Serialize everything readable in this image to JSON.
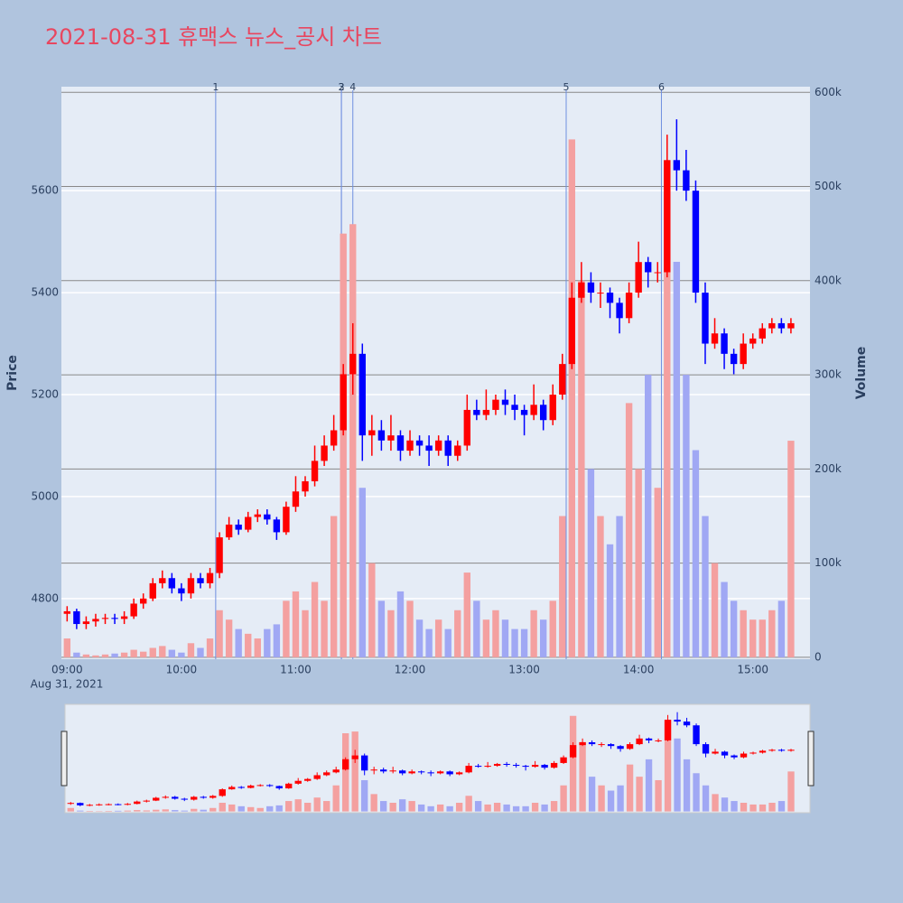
{
  "chart_data": {
    "type": "candlestick",
    "title": "2021-08-31 휴맥스 뉴스_공시 차트",
    "y_label": "Price",
    "y2_label": "Volume",
    "x_date_label": "Aug 31, 2021",
    "increasing_color": "#ff0000",
    "decreasing_color": "#0000ff",
    "volume_increasing_color": "#f4a0a0",
    "volume_decreasing_color": "#a0a8f4",
    "xlim": [
      "08:57",
      "15:30"
    ],
    "xticks": [
      "09:00",
      "10:00",
      "11:00",
      "12:00",
      "13:00",
      "14:00",
      "15:00"
    ],
    "ylim": [
      4681,
      5804
    ],
    "yticks": [
      4800,
      5000,
      5200,
      5400,
      5600
    ],
    "y2lim": [
      -2000,
      606000
    ],
    "y2ticks": [
      0,
      {
        "value": 100000,
        "label": "100k"
      },
      {
        "value": 200000,
        "label": "200k"
      },
      {
        "value": 300000,
        "label": "300k"
      },
      {
        "value": 400000,
        "label": "400k"
      },
      {
        "value": 500000,
        "label": "500k"
      },
      {
        "value": 600000,
        "label": "600k"
      }
    ],
    "news_markers": [
      {
        "x": "10:18",
        "label": "1"
      },
      {
        "x": "11:24",
        "label": "2"
      },
      {
        "x": "11:24",
        "label": "3"
      },
      {
        "x": "11:30",
        "label": "4"
      },
      {
        "x": "13:22",
        "label": "5"
      },
      {
        "x": "14:12",
        "label": "6"
      }
    ],
    "x": [
      "09:00",
      "09:05",
      "09:10",
      "09:15",
      "09:20",
      "09:25",
      "09:30",
      "09:35",
      "09:40",
      "09:45",
      "09:50",
      "09:55",
      "10:00",
      "10:05",
      "10:10",
      "10:15",
      "10:20",
      "10:25",
      "10:30",
      "10:35",
      "10:40",
      "10:45",
      "10:50",
      "10:55",
      "11:00",
      "11:05",
      "11:10",
      "11:15",
      "11:20",
      "11:25",
      "11:30",
      "11:35",
      "11:40",
      "11:45",
      "11:50",
      "11:55",
      "12:00",
      "12:05",
      "12:10",
      "12:15",
      "12:20",
      "12:25",
      "12:30",
      "12:35",
      "12:40",
      "12:45",
      "12:50",
      "12:55",
      "13:00",
      "13:05",
      "13:10",
      "13:15",
      "13:20",
      "13:25",
      "13:30",
      "13:35",
      "13:40",
      "13:45",
      "13:50",
      "13:55",
      "14:00",
      "14:05",
      "14:10",
      "14:15",
      "14:20",
      "14:25",
      "14:30",
      "14:35",
      "14:40",
      "14:45",
      "14:50",
      "14:55",
      "15:00",
      "15:05",
      "15:10",
      "15:15",
      "15:20"
    ],
    "open": [
      4770,
      4775,
      4750,
      4755,
      4760,
      4762,
      4760,
      4765,
      4790,
      4800,
      4830,
      4840,
      4820,
      4810,
      4840,
      4830,
      4850,
      4920,
      4945,
      4935,
      4960,
      4965,
      4955,
      4930,
      4980,
      5010,
      5030,
      5070,
      5100,
      5130,
      5240,
      5280,
      5120,
      5130,
      5110,
      5120,
      5090,
      5110,
      5100,
      5090,
      5110,
      5080,
      5100,
      5170,
      5160,
      5170,
      5190,
      5180,
      5170,
      5160,
      5180,
      5150,
      5200,
      5260,
      5390,
      5420,
      5400,
      5400,
      5380,
      5350,
      5400,
      5460,
      5440,
      5440,
      5660,
      5640,
      5600,
      5400,
      5300,
      5320,
      5280,
      5260,
      5300,
      5310,
      5330,
      5340,
      5330
    ],
    "high": [
      4785,
      4780,
      4765,
      4770,
      4770,
      4770,
      4775,
      4800,
      4810,
      4840,
      4855,
      4850,
      4830,
      4850,
      4850,
      4860,
      4930,
      4960,
      4955,
      4970,
      4975,
      4975,
      4960,
      4990,
      5040,
      5040,
      5100,
      5120,
      5160,
      5260,
      5340,
      5300,
      5160,
      5150,
      5160,
      5130,
      5130,
      5120,
      5120,
      5120,
      5120,
      5110,
      5200,
      5190,
      5210,
      5200,
      5210,
      5200,
      5180,
      5220,
      5190,
      5220,
      5280,
      5420,
      5460,
      5440,
      5420,
      5410,
      5390,
      5420,
      5500,
      5470,
      5460,
      5710,
      5740,
      5680,
      5620,
      5420,
      5350,
      5330,
      5290,
      5320,
      5320,
      5340,
      5350,
      5350,
      5350
    ],
    "low": [
      4755,
      4740,
      4740,
      4745,
      4750,
      4750,
      4750,
      4760,
      4780,
      4795,
      4820,
      4810,
      4795,
      4800,
      4820,
      4820,
      4840,
      4915,
      4925,
      4930,
      4950,
      4945,
      4915,
      4925,
      4970,
      5000,
      5020,
      5060,
      5090,
      5120,
      5200,
      5070,
      5080,
      5090,
      5090,
      5070,
      5080,
      5080,
      5060,
      5080,
      5060,
      5070,
      5090,
      5150,
      5150,
      5160,
      5160,
      5150,
      5120,
      5150,
      5130,
      5140,
      5190,
      5250,
      5380,
      5380,
      5370,
      5350,
      5320,
      5340,
      5390,
      5410,
      5420,
      5430,
      5600,
      5580,
      5380,
      5260,
      5290,
      5250,
      5240,
      5250,
      5290,
      5300,
      5320,
      5320,
      5320
    ],
    "close": [
      4775,
      4750,
      4755,
      4760,
      4762,
      4760,
      4765,
      4790,
      4800,
      4830,
      4840,
      4820,
      4810,
      4840,
      4830,
      4850,
      4920,
      4945,
      4935,
      4960,
      4965,
      4955,
      4930,
      4980,
      5010,
      5030,
      5070,
      5100,
      5130,
      5240,
      5280,
      5120,
      5130,
      5110,
      5120,
      5090,
      5110,
      5100,
      5090,
      5110,
      5080,
      5100,
      5170,
      5160,
      5170,
      5190,
      5180,
      5170,
      5160,
      5180,
      5150,
      5200,
      5260,
      5390,
      5420,
      5400,
      5400,
      5380,
      5350,
      5400,
      5460,
      5440,
      5440,
      5660,
      5640,
      5600,
      5400,
      5300,
      5320,
      5280,
      5260,
      5300,
      5310,
      5330,
      5340,
      5330,
      5340
    ],
    "volume": [
      20000,
      5000,
      3000,
      2000,
      3000,
      4000,
      5000,
      8000,
      6000,
      10000,
      12000,
      8000,
      5000,
      15000,
      10000,
      20000,
      50000,
      40000,
      30000,
      25000,
      20000,
      30000,
      35000,
      60000,
      70000,
      50000,
      80000,
      60000,
      150000,
      450000,
      460000,
      180000,
      100000,
      60000,
      50000,
      70000,
      60000,
      40000,
      30000,
      40000,
      30000,
      50000,
      90000,
      60000,
      40000,
      50000,
      40000,
      30000,
      30000,
      50000,
      40000,
      60000,
      150000,
      550000,
      400000,
      200000,
      150000,
      120000,
      150000,
      270000,
      200000,
      300000,
      180000,
      520000,
      420000,
      300000,
      220000,
      150000,
      100000,
      80000,
      60000,
      50000,
      40000,
      40000,
      50000,
      60000,
      230000
    ]
  }
}
